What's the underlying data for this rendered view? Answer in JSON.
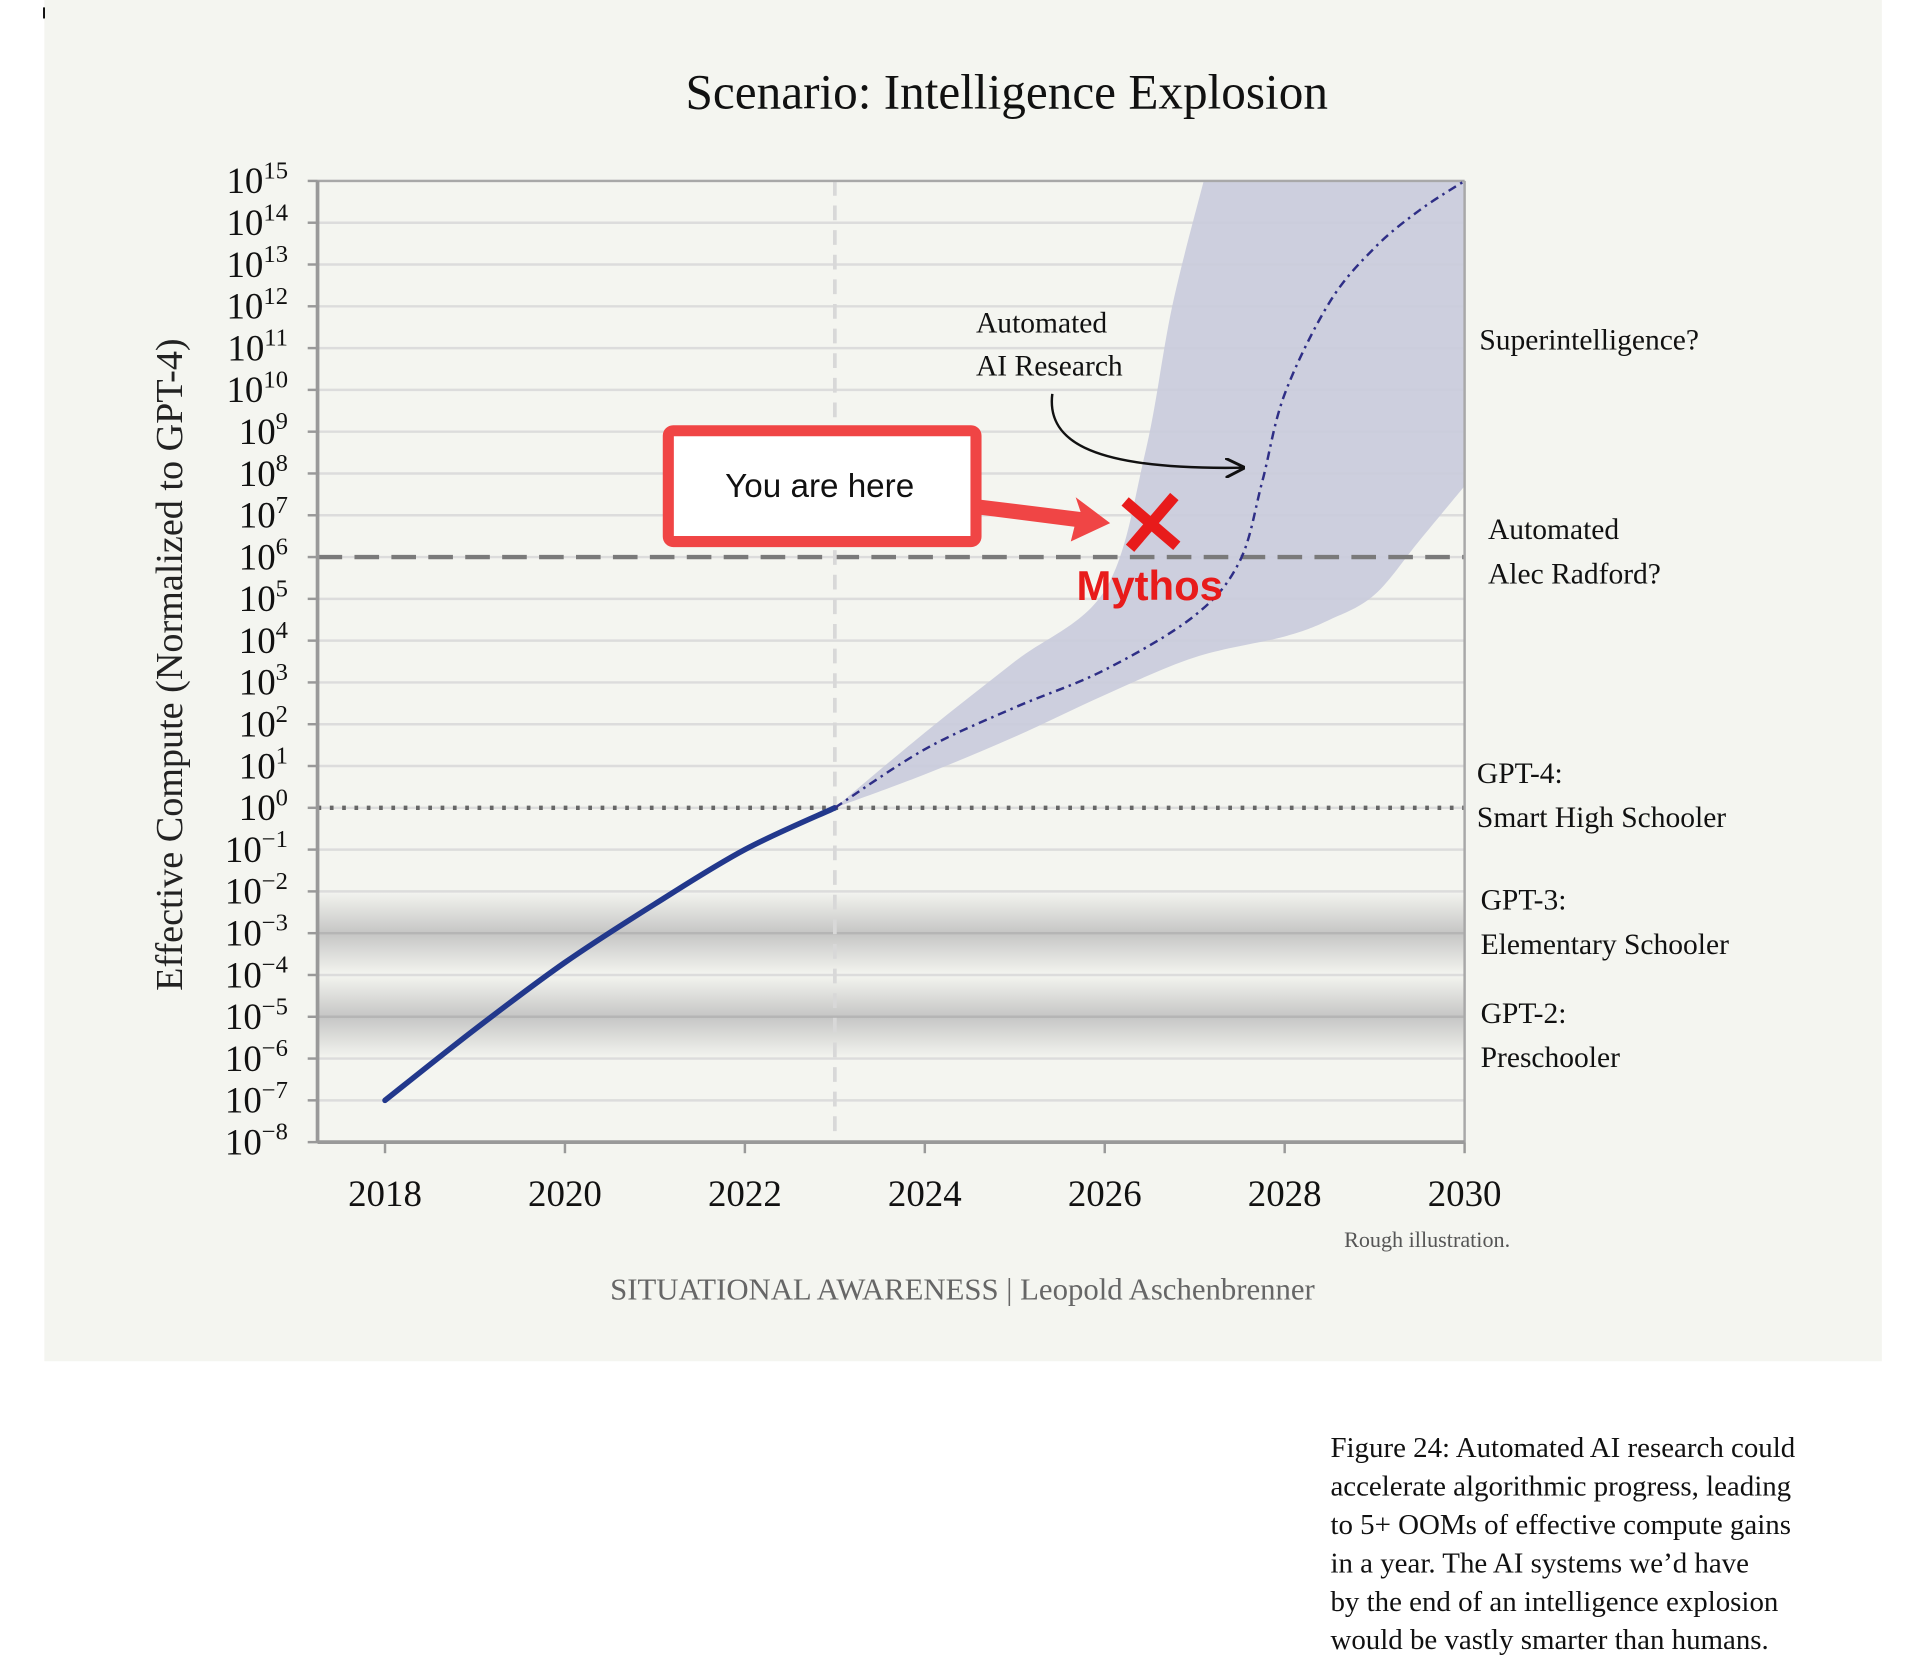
{
  "chart_data": {
    "type": "line",
    "title": "Scenario: Intelligence Explosion",
    "ylabel": "Effective Compute (Normalized to GPT-4)",
    "xlabel": "",
    "xlim": [
      2017.25,
      2030
    ],
    "ylim_log10": [
      -8,
      15
    ],
    "y_scale": "log",
    "grid": true,
    "x_ticks": [
      "2018",
      "2020",
      "2022",
      "2024",
      "2026",
      "2028",
      "2030"
    ],
    "y_tick_exponents": [
      15,
      14,
      13,
      12,
      11,
      10,
      9,
      8,
      7,
      6,
      5,
      4,
      3,
      2,
      1,
      0,
      -1,
      -2,
      -3,
      -4,
      -5,
      -6,
      -7,
      -8
    ],
    "y_tick_base": "10",
    "series": [
      {
        "style": "solid",
        "color": "#22388c",
        "x": [
          2018,
          2019,
          2020,
          2021,
          2022,
          2023
        ],
        "log10_y": [
          -7,
          -5.3,
          -3.7,
          -2.3,
          -1.0,
          0
        ]
      },
      {
        "style": "dash-dot",
        "color": "#2e2e86",
        "x": [
          2023,
          2024,
          2025,
          2026,
          2027,
          2027.5,
          2027.75,
          2028,
          2028.5,
          2029,
          2029.5,
          2030
        ],
        "log10_y": [
          0,
          1.4,
          2.4,
          3.3,
          4.6,
          5.9,
          7.8,
          9.9,
          12.1,
          13.4,
          14.3,
          15
        ]
      }
    ],
    "uncertainty_band": {
      "color": "#c9cbdc",
      "upper": {
        "x": [
          2023,
          2024,
          2025,
          2026,
          2026.45,
          2026.75,
          2027.1
        ],
        "log10_y": [
          0,
          1.8,
          3.5,
          5.2,
          8.5,
          12,
          15
        ]
      },
      "lower": {
        "x": [
          2023,
          2024,
          2025,
          2026,
          2027,
          2028,
          2028.5,
          2029,
          2029.5,
          2030
        ],
        "log10_y": [
          0,
          0.8,
          1.7,
          2.7,
          3.6,
          4.1,
          4.5,
          5.1,
          6.4,
          7.7
        ]
      }
    },
    "reference_lines": [
      {
        "orientation": "horizontal",
        "log10_y": 6,
        "style": "dashed",
        "label": [
          "Automated",
          "Alec Radford?"
        ]
      },
      {
        "orientation": "horizontal",
        "log10_y": 0,
        "style": "dotted",
        "label": [
          "GPT-4:",
          "Smart High Schooler"
        ]
      },
      {
        "orientation": "vertical",
        "x": 2023,
        "style": "dashed"
      }
    ],
    "level_bands": [
      {
        "log10_y": -3,
        "label": [
          "GPT-3:",
          "Elementary Schooler"
        ]
      },
      {
        "log10_y": -5,
        "label": [
          "GPT-2:",
          "Preschooler"
        ]
      }
    ],
    "level_labels": [
      {
        "log10_y": 11,
        "label": [
          "Superintelligence?"
        ]
      }
    ],
    "annotations": {
      "automated_research": [
        "Automated",
        "AI Research"
      ],
      "callout": "You are here",
      "marker_label": "Mythos",
      "marker": {
        "x": 2026.5,
        "log10_y": 6.8,
        "color": "#e81b1b"
      },
      "note": "Rough illustration."
    },
    "credit": "SITUATIONAL AWARENESS | Leopold Aschenbrenner"
  },
  "caption": [
    "Figure 24: Automated AI research could",
    "accelerate algorithmic progress, leading",
    "to 5+ OOMs of effective compute gains",
    "in a year. The AI systems we’d have",
    "by the end of an intelligence explosion",
    "would be vastly smarter than humans."
  ]
}
